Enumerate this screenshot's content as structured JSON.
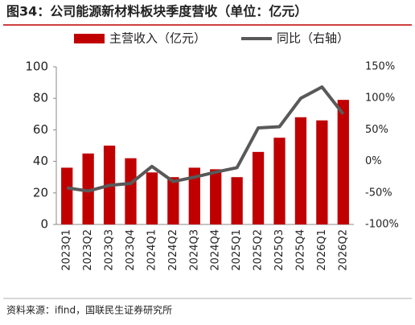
{
  "chart_data": {
    "type": "bar-line",
    "title": "图34：公司能源新材料板块季度营收（单位：亿元）",
    "source": "资料来源：ifind，国联民生证券研究所",
    "categories": [
      "2023Q1",
      "2023Q2",
      "2023Q3",
      "2023Q4",
      "2024Q1",
      "2024Q2",
      "2024Q3",
      "2024Q4",
      "2025Q1",
      "2025Q2",
      "2025Q3",
      "2025Q4",
      "2026Q1",
      "2026Q2"
    ],
    "series": [
      {
        "name": "主营收入（亿元）",
        "color": "#c00000",
        "type": "bar",
        "values": [
          36,
          45,
          50,
          42,
          33,
          30,
          36,
          35,
          30,
          46,
          55,
          68,
          66,
          79
        ]
      },
      {
        "name": "同比（右轴）",
        "color": "#595959",
        "type": "line",
        "axis": "y2",
        "values": [
          -42,
          -47,
          -38,
          -35,
          -8,
          -32,
          -25,
          -17,
          -10,
          53,
          55,
          100,
          118,
          75
        ]
      }
    ],
    "ylim": [
      0,
      100
    ],
    "yticks": [
      0,
      20,
      40,
      60,
      80,
      100
    ],
    "y2lim": [
      -100,
      150
    ],
    "y2ticks": [
      {
        "value": -100,
        "label": "-100%"
      },
      {
        "value": -50,
        "label": "-50%"
      },
      {
        "value": 0,
        "label": "0%"
      },
      {
        "value": 50,
        "label": "50%"
      },
      {
        "value": 100,
        "label": "100%"
      },
      {
        "value": 150,
        "label": "150%"
      }
    ]
  }
}
